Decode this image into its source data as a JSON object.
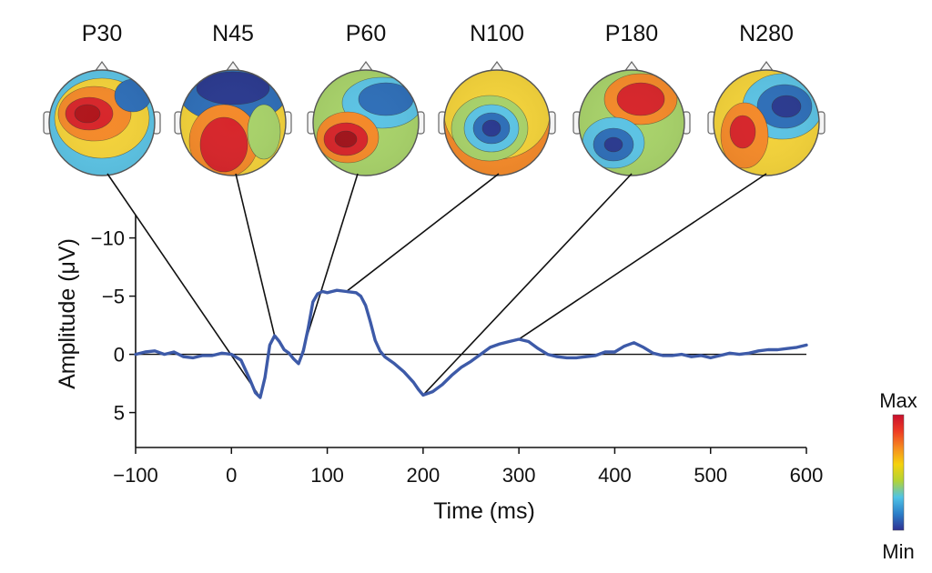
{
  "chart_data": {
    "type": "line",
    "xlabel": "Time (ms)",
    "ylabel": "Amplitude (μV)",
    "xlim": [
      -100,
      600
    ],
    "ylim": [
      8,
      -12
    ],
    "y_inverted": true,
    "xticks": [
      -100,
      0,
      100,
      200,
      300,
      400,
      500,
      600
    ],
    "yticks": [
      -10,
      -5,
      0,
      5
    ],
    "zero_line": true,
    "line_color": "#3d5aa8",
    "series": [
      {
        "x": [
          -100,
          -90,
          -80,
          -70,
          -60,
          -50,
          -40,
          -30,
          -20,
          -10,
          0,
          10,
          20,
          25,
          30,
          35,
          40,
          45,
          50,
          55,
          60,
          65,
          70,
          75,
          80,
          85,
          90,
          95,
          100,
          105,
          110,
          120,
          130,
          135,
          140,
          145,
          150,
          155,
          160,
          170,
          180,
          190,
          195,
          200,
          210,
          220,
          230,
          240,
          250,
          260,
          270,
          280,
          290,
          300,
          310,
          320,
          330,
          340,
          350,
          360,
          370,
          380,
          390,
          400,
          410,
          420,
          430,
          440,
          450,
          460,
          470,
          480,
          490,
          500,
          510,
          520,
          530,
          540,
          550,
          560,
          570,
          580,
          590,
          600
        ],
        "y": [
          0,
          -0.2,
          -0.3,
          0,
          -0.2,
          0.2,
          0.3,
          0.1,
          0.1,
          -0.1,
          0,
          0.5,
          2.3,
          3.3,
          3.7,
          2,
          -0.8,
          -1.6,
          -1.1,
          -0.4,
          -0.1,
          0.4,
          0.8,
          -0.3,
          -2.2,
          -4.5,
          -5.2,
          -5.4,
          -5.3,
          -5.4,
          -5.5,
          -5.4,
          -5.3,
          -5,
          -4.2,
          -2.8,
          -1.2,
          -0.3,
          0.2,
          0.8,
          1.5,
          2.4,
          3,
          3.5,
          3.2,
          2.6,
          1.8,
          1.1,
          0.6,
          0,
          -0.6,
          -0.9,
          -1.1,
          -1.3,
          -1.1,
          -0.5,
          0,
          0.2,
          0.3,
          0.3,
          0.2,
          0.1,
          -0.2,
          -0.2,
          -0.7,
          -1,
          -0.6,
          -0.1,
          0.1,
          0.1,
          0,
          0.2,
          0.1,
          0.3,
          0.1,
          -0.1,
          0,
          -0.1,
          -0.3,
          -0.4,
          -0.4,
          -0.5,
          -0.6,
          -0.8
        ]
      }
    ],
    "components": [
      {
        "name": "P30",
        "time": 30,
        "value": 3.7
      },
      {
        "name": "N45",
        "time": 45,
        "value": -1.6
      },
      {
        "name": "P60",
        "time": 70,
        "value": 0.8
      },
      {
        "name": "N100",
        "time": 120,
        "value": -5.4
      },
      {
        "name": "P180",
        "time": 200,
        "value": 3.5
      },
      {
        "name": "N280",
        "time": 300,
        "value": -1.3
      }
    ],
    "colorbar": {
      "max_label": "Max",
      "min_label": "Min",
      "colors": [
        "#c8102e",
        "#ee3b24",
        "#f68b1f",
        "#f5d20d",
        "#b3d335",
        "#4fc3e6",
        "#2b7fc9",
        "#2e3192"
      ]
    }
  }
}
